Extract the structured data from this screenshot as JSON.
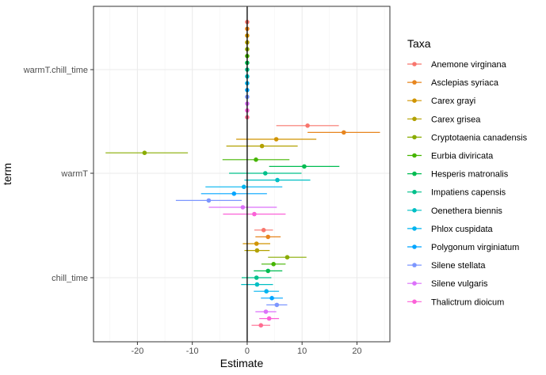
{
  "chart_data": {
    "type": "scatter",
    "subtype": "coefficient-plot-with-error-bars",
    "xlabel": "Estimate",
    "ylabel": "term",
    "xlim": [
      -28,
      26
    ],
    "x_ticks": [
      -20,
      -10,
      0,
      10,
      20
    ],
    "x_tick_labels": [
      "-20",
      "-10",
      "0",
      "10",
      "20"
    ],
    "terms": [
      "warmT.chill_time",
      "warmT",
      "chill_time"
    ],
    "reference_line_x": 0,
    "grid": true,
    "legend_title": "Taxa",
    "legend_position": "right",
    "series": [
      {
        "name": "Anemone virginana",
        "color": "#F8766D",
        "points": [
          {
            "term": "warmT.chill_time",
            "estimate": 0.0,
            "lo": -0.15,
            "hi": 0.15
          },
          {
            "term": "warmT",
            "estimate": 11.0,
            "lo": 5.3,
            "hi": 16.7
          },
          {
            "term": "chill_time",
            "estimate": 3.0,
            "lo": 1.3,
            "hi": 4.7
          }
        ]
      },
      {
        "name": "Asclepias syriaca",
        "color": "#E7851E",
        "points": [
          {
            "term": "warmT.chill_time",
            "estimate": 0.0,
            "lo": -0.15,
            "hi": 0.15
          },
          {
            "term": "warmT",
            "estimate": 17.6,
            "lo": 11.0,
            "hi": 24.2
          },
          {
            "term": "chill_time",
            "estimate": 3.8,
            "lo": 1.5,
            "hi": 6.1
          }
        ]
      },
      {
        "name": "Carex grayi",
        "color": "#D09400",
        "points": [
          {
            "term": "warmT.chill_time",
            "estimate": 0.0,
            "lo": -0.15,
            "hi": 0.15
          },
          {
            "term": "warmT",
            "estimate": 5.3,
            "lo": -2.0,
            "hi": 12.6
          },
          {
            "term": "chill_time",
            "estimate": 1.7,
            "lo": -0.8,
            "hi": 4.2
          }
        ]
      },
      {
        "name": "Carex grisea",
        "color": "#B2A100",
        "points": [
          {
            "term": "warmT.chill_time",
            "estimate": 0.0,
            "lo": -0.15,
            "hi": 0.15
          },
          {
            "term": "warmT",
            "estimate": 2.7,
            "lo": -3.8,
            "hi": 9.2
          },
          {
            "term": "chill_time",
            "estimate": 1.8,
            "lo": -0.5,
            "hi": 4.1
          }
        ]
      },
      {
        "name": "Cryptotaenia canadensis",
        "color": "#89AC00",
        "points": [
          {
            "term": "warmT.chill_time",
            "estimate": 0.0,
            "lo": -0.15,
            "hi": 0.15
          },
          {
            "term": "warmT",
            "estimate": -18.7,
            "lo": -25.8,
            "hi": -10.8
          },
          {
            "term": "chill_time",
            "estimate": 7.3,
            "lo": 3.8,
            "hi": 10.8
          }
        ]
      },
      {
        "name": "Eurbia diviricata",
        "color": "#45B500",
        "points": [
          {
            "term": "warmT.chill_time",
            "estimate": 0.0,
            "lo": -0.15,
            "hi": 0.15
          },
          {
            "term": "warmT",
            "estimate": 1.6,
            "lo": -4.5,
            "hi": 7.7
          },
          {
            "term": "chill_time",
            "estimate": 4.8,
            "lo": 2.6,
            "hi": 7.0
          }
        ]
      },
      {
        "name": "Hesperis matronalis",
        "color": "#00BC51",
        "points": [
          {
            "term": "warmT.chill_time",
            "estimate": 0.0,
            "lo": -0.15,
            "hi": 0.15
          },
          {
            "term": "warmT",
            "estimate": 10.4,
            "lo": 4.0,
            "hi": 16.8
          },
          {
            "term": "chill_time",
            "estimate": 3.8,
            "lo": 1.2,
            "hi": 6.4
          }
        ]
      },
      {
        "name": "Impatiens capensis",
        "color": "#00C08B",
        "points": [
          {
            "term": "warmT.chill_time",
            "estimate": 0.0,
            "lo": -0.15,
            "hi": 0.15
          },
          {
            "term": "warmT",
            "estimate": 3.3,
            "lo": -3.3,
            "hi": 9.9
          },
          {
            "term": "chill_time",
            "estimate": 1.7,
            "lo": -1.0,
            "hi": 4.4
          }
        ]
      },
      {
        "name": "Oenethera biennis",
        "color": "#00BFC4",
        "points": [
          {
            "term": "warmT.chill_time",
            "estimate": 0.0,
            "lo": -0.15,
            "hi": 0.15
          },
          {
            "term": "warmT",
            "estimate": 5.5,
            "lo": -0.5,
            "hi": 11.5
          },
          {
            "term": "chill_time",
            "estimate": 1.8,
            "lo": -1.1,
            "hi": 4.7
          }
        ]
      },
      {
        "name": "Phlox cuspidata",
        "color": "#00B4EF",
        "points": [
          {
            "term": "warmT.chill_time",
            "estimate": 0.0,
            "lo": -0.15,
            "hi": 0.15
          },
          {
            "term": "warmT",
            "estimate": -0.6,
            "lo": -7.6,
            "hi": 6.4
          },
          {
            "term": "chill_time",
            "estimate": 3.5,
            "lo": 1.2,
            "hi": 5.8
          }
        ]
      },
      {
        "name": "Polygonum virginiatum",
        "color": "#00A5FF",
        "points": [
          {
            "term": "warmT.chill_time",
            "estimate": 0.0,
            "lo": -0.15,
            "hi": 0.15
          },
          {
            "term": "warmT",
            "estimate": -2.4,
            "lo": -8.4,
            "hi": 3.6
          },
          {
            "term": "chill_time",
            "estimate": 4.5,
            "lo": 2.5,
            "hi": 6.5
          }
        ]
      },
      {
        "name": "Silene stellata",
        "color": "#7C96FF",
        "points": [
          {
            "term": "warmT.chill_time",
            "estimate": 0.0,
            "lo": -0.15,
            "hi": 0.15
          },
          {
            "term": "warmT",
            "estimate": -7.0,
            "lo": -13.0,
            "hi": -1.0
          },
          {
            "term": "chill_time",
            "estimate": 5.4,
            "lo": 3.5,
            "hi": 7.3
          }
        ]
      },
      {
        "name": "Silene vulgaris",
        "color": "#DC71FA",
        "points": [
          {
            "term": "warmT.chill_time",
            "estimate": 0.0,
            "lo": -0.15,
            "hi": 0.15
          },
          {
            "term": "warmT",
            "estimate": -0.8,
            "lo": -7.0,
            "hi": 5.4
          },
          {
            "term": "chill_time",
            "estimate": 3.4,
            "lo": 1.5,
            "hi": 5.3
          }
        ]
      },
      {
        "name": "Thalictrum dioicum",
        "color": "#FB61D7",
        "points": [
          {
            "term": "warmT.chill_time",
            "estimate": 0.0,
            "lo": -0.15,
            "hi": 0.15
          },
          {
            "term": "warmT",
            "estimate": 1.3,
            "lo": -4.4,
            "hi": 7.0
          },
          {
            "term": "chill_time",
            "estimate": 4.0,
            "lo": 2.2,
            "hi": 5.8
          }
        ]
      },
      {
        "name": "",
        "color": "#FF6C91",
        "points": [
          {
            "term": "warmT.chill_time",
            "estimate": 0.0,
            "lo": -0.15,
            "hi": 0.15
          },
          {
            "term": "chill_time",
            "estimate": 2.5,
            "lo": 0.8,
            "hi": 4.2
          }
        ]
      }
    ]
  }
}
